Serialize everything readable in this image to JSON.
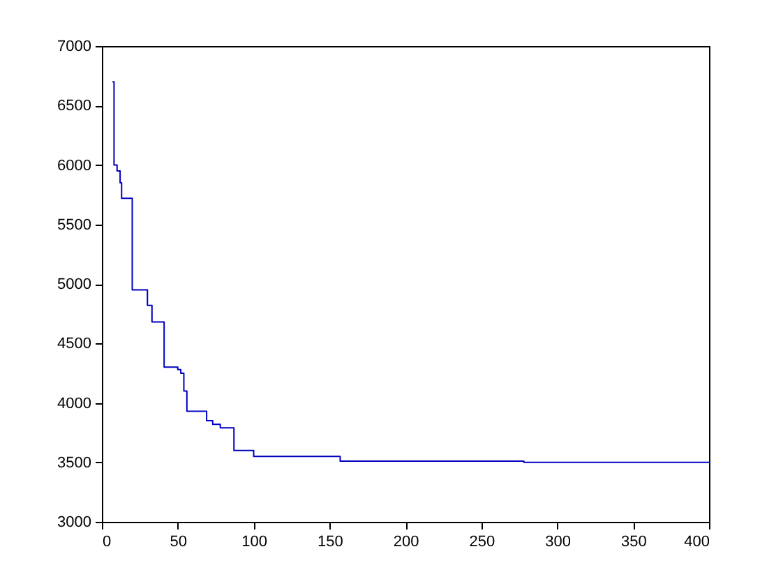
{
  "chart_data": {
    "type": "step",
    "x": [
      7,
      8,
      10,
      12,
      13,
      20,
      30,
      33,
      41,
      50,
      52,
      54,
      56,
      69,
      73,
      78,
      87,
      100,
      157,
      278,
      400
    ],
    "series": [
      {
        "color": "#0000c0",
        "values": [
          6700,
          6000,
          5950,
          5850,
          5720,
          4950,
          4820,
          4680,
          4300,
          4280,
          4250,
          4100,
          3930,
          3850,
          3820,
          3790,
          3600,
          3550,
          3510,
          3500,
          3500
        ]
      }
    ],
    "xlim": [
      0,
      400
    ],
    "xticks": [
      0,
      50,
      100,
      150,
      200,
      250,
      300,
      350,
      400
    ],
    "ylim": [
      3000,
      7000
    ],
    "yticks": [
      3000,
      3500,
      4000,
      4500,
      5000,
      5500,
      6000,
      6500,
      7000
    ],
    "grid": false,
    "marker": "none",
    "line_style": "solid"
  }
}
